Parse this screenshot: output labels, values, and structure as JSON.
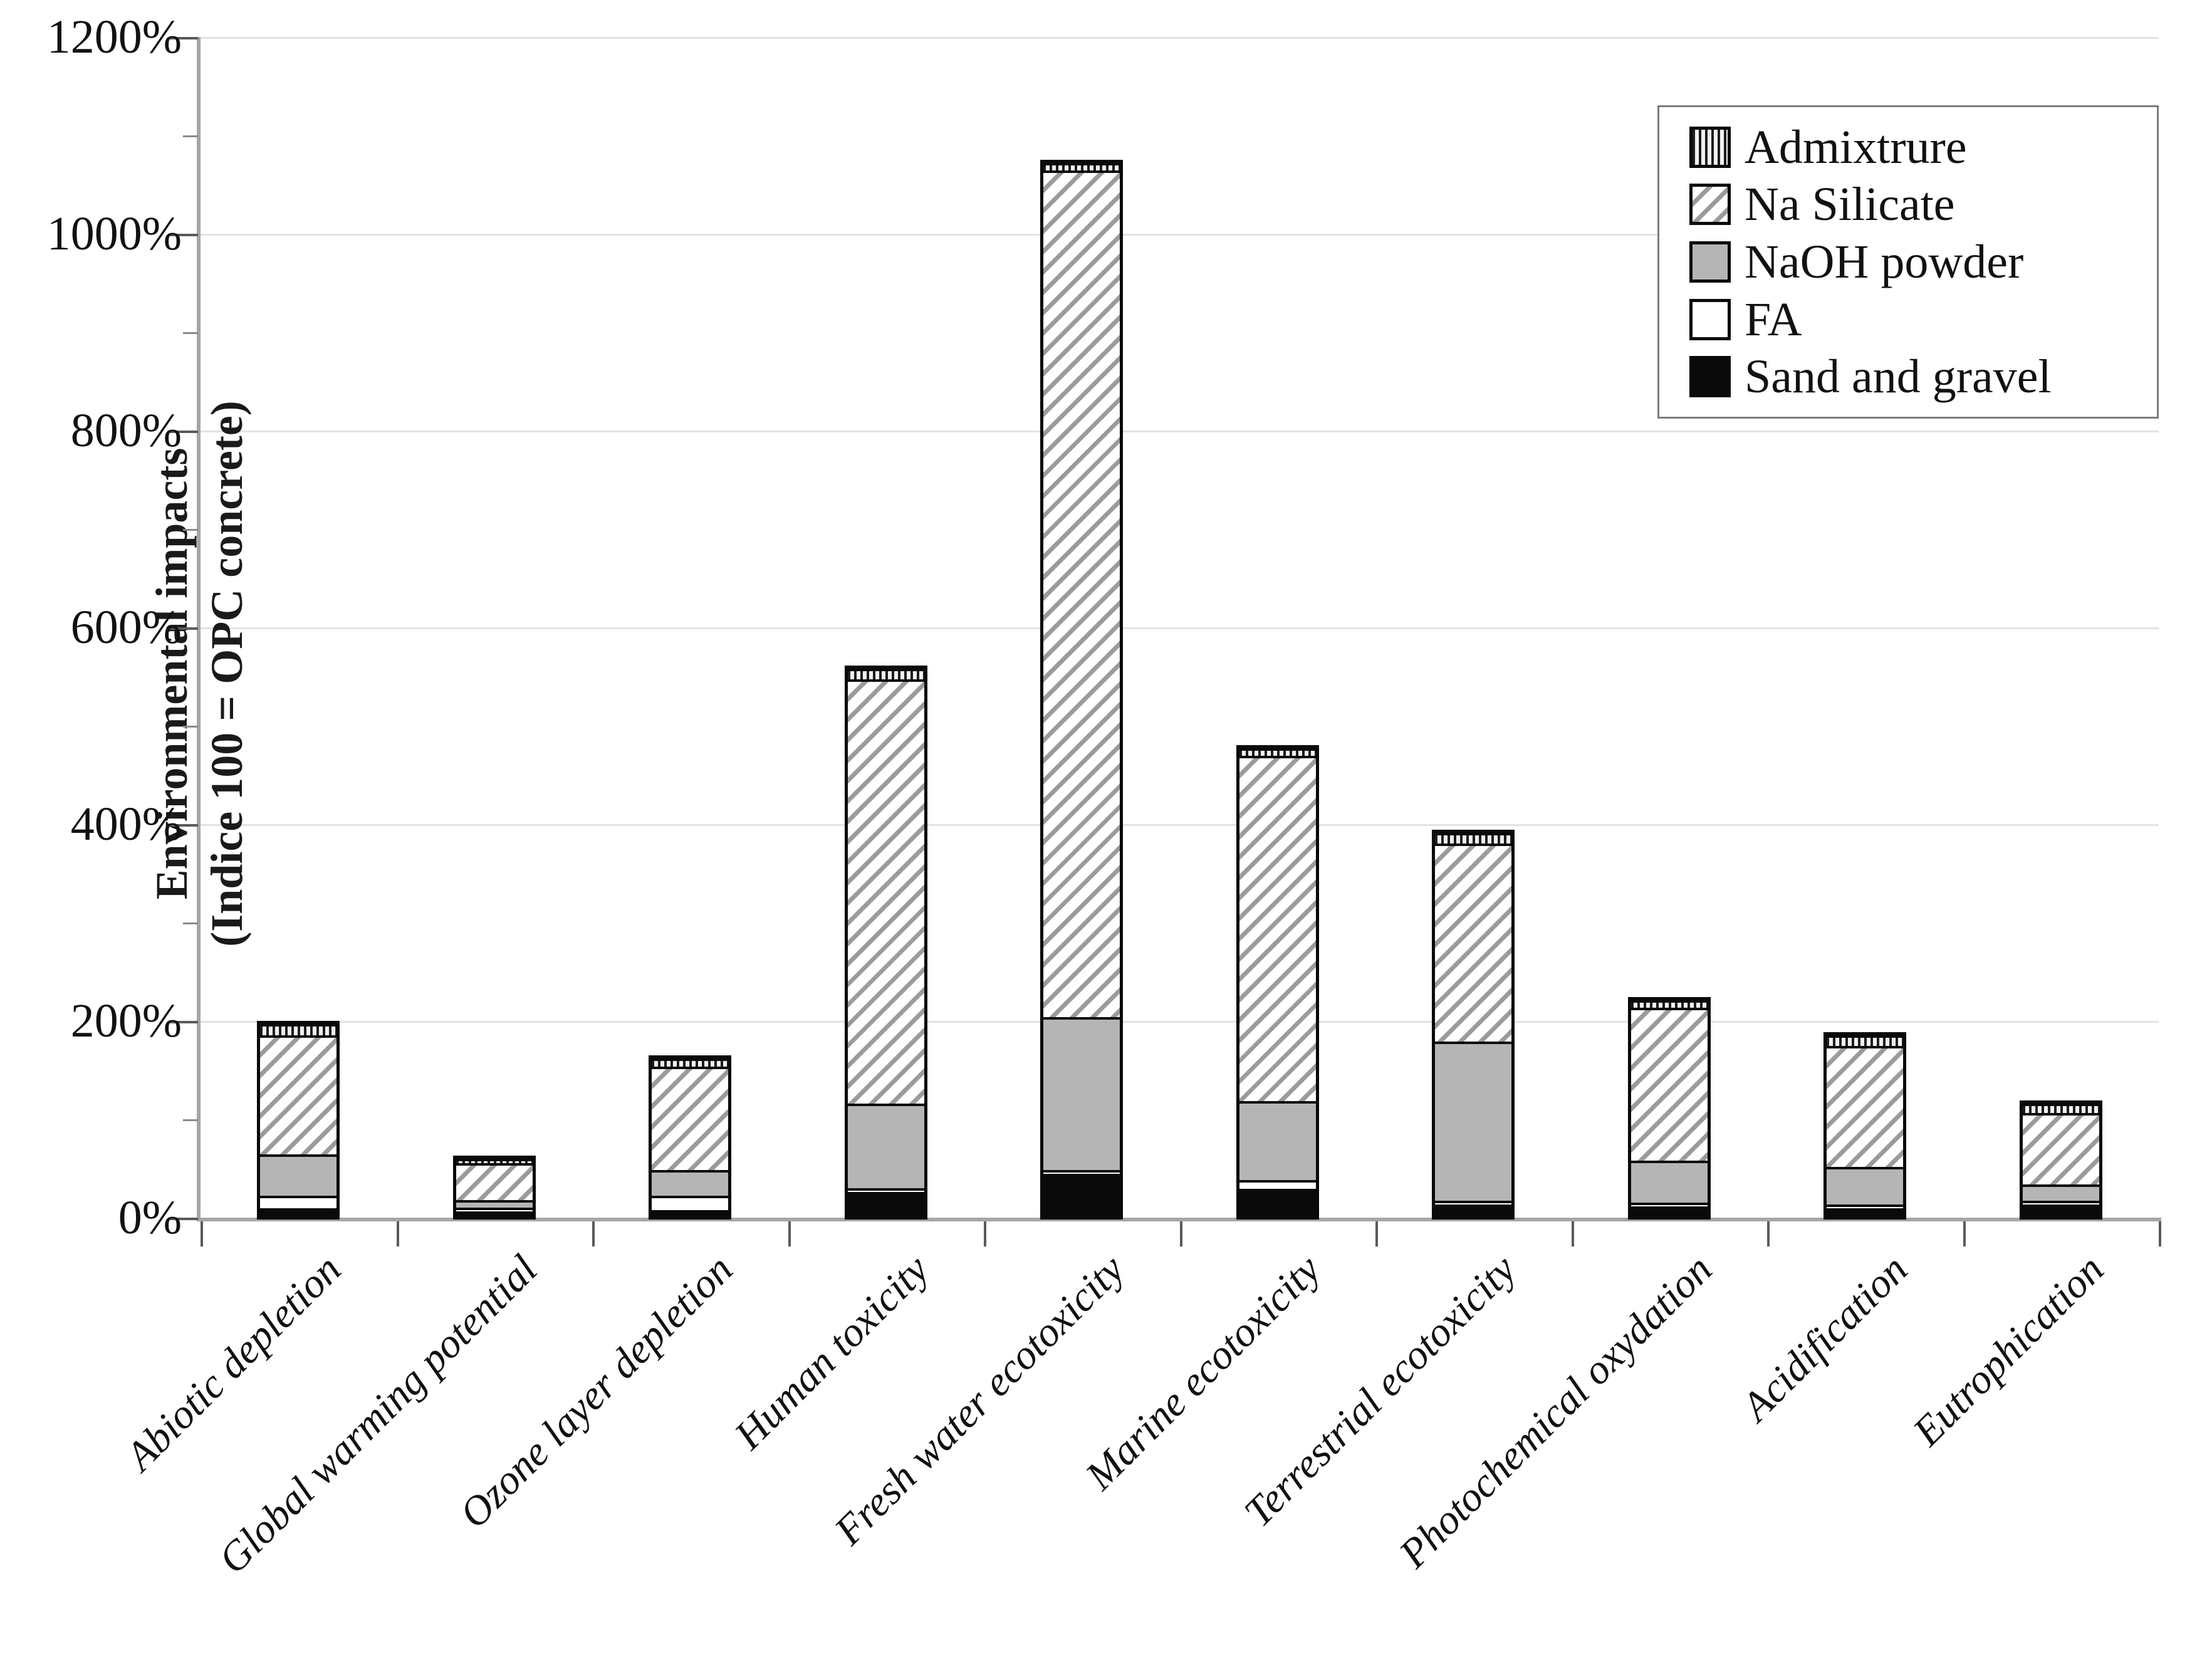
{
  "y_axis": {
    "title_line1": "Environmental impacts",
    "title_line2": "(Indice 100 = OPC concrete)"
  },
  "chart_data": {
    "type": "bar",
    "stacked": true,
    "title": "",
    "xlabel": "",
    "ylabel": "Environmental impacts (Indice 100 = OPC concrete)",
    "ylim": [
      0,
      1200
    ],
    "y_tick_labels": [
      "0%",
      "200%",
      "400%",
      "600%",
      "800%",
      "1000%",
      "1200%"
    ],
    "y_major_tick_step_pct": 200,
    "y_minor_tick_step_pct": 100,
    "grid": "horizontal gridlines every 200%",
    "legend_position": "top-right",
    "legend_order": [
      "Admixtrure",
      "Na Silicate",
      "NaOH powder",
      "FA",
      "Sand and gravel"
    ],
    "categories": [
      "Abiotic depletion",
      "Global warming potential",
      "Ozone layer depletion",
      "Human toxicity",
      "Fresh water ecotoxicity",
      "Marine ecotoxicity",
      "Terrestrial ecotoxicity",
      "Photochemical oxydation",
      "Acidification",
      "Eutrophication"
    ],
    "series": [
      {
        "name": "Sand and gravel",
        "pattern": "solid-black",
        "values": [
          10,
          7,
          8,
          27,
          45,
          30,
          14,
          12,
          10,
          14
        ]
      },
      {
        "name": "FA",
        "pattern": "solid-white",
        "values": [
          12,
          2,
          14,
          3,
          2,
          8,
          2,
          3,
          2,
          2
        ]
      },
      {
        "name": "NaOH powder",
        "pattern": "solid-gray",
        "values": [
          42,
          7,
          26,
          85,
          155,
          80,
          161,
          42,
          38,
          16
        ]
      },
      {
        "name": "Na Silicate",
        "pattern": "diagonal-hatch",
        "values": [
          120,
          37,
          104,
          431,
          860,
          350,
          201,
          155,
          122,
          72
        ]
      },
      {
        "name": "Admixtrure",
        "pattern": "vertical-lines",
        "values": [
          11,
          4,
          8,
          10,
          7,
          7,
          10,
          7,
          10,
          9
        ]
      }
    ],
    "totals_pct": [
      195,
      57,
      160,
      556,
      1069,
      475,
      388,
      219,
      182,
      113
    ],
    "colors": {
      "segment_border": "#0a0a0a",
      "gray_fill": "#b5b5b5",
      "hatch_line": "#9b9b9b",
      "axis": "#a6a6a6",
      "gridline": "#e2e2e2",
      "text": "#111111"
    }
  }
}
